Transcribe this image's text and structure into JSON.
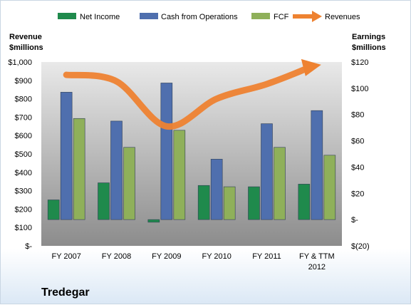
{
  "company": "Tredegar",
  "colors": {
    "net_income": "#1f8a4c",
    "cash_from_operations": "#4f6fae",
    "fcf": "#8fb05a",
    "revenues": "#ee8231"
  },
  "chart_data": {
    "type": "bar",
    "categories": [
      "FY 2007",
      "FY 2008",
      "FY 2009",
      "FY 2010",
      "FY 2011",
      "FY & TTM 2012"
    ],
    "series": [
      {
        "name": "Net Income",
        "type": "bar",
        "axis": "right",
        "values": [
          15,
          28,
          -2,
          26,
          25,
          27
        ]
      },
      {
        "name": "Cash from Operations",
        "type": "bar",
        "axis": "right",
        "values": [
          97,
          75,
          104,
          46,
          73,
          83
        ]
      },
      {
        "name": "FCF",
        "type": "bar",
        "axis": "right",
        "values": [
          77,
          55,
          68,
          25,
          55,
          49
        ]
      },
      {
        "name": "Revenues",
        "type": "line",
        "axis": "left",
        "values": [
          930,
          895,
          650,
          800,
          880,
          985
        ]
      }
    ],
    "ylabel_left": [
      "Revenue",
      "$millions"
    ],
    "ylabel_right": [
      "Earnings",
      "$millions"
    ],
    "ylim_left": [
      0,
      1000
    ],
    "ylim_right": [
      -20,
      120
    ],
    "left_ticks": [
      "$-",
      "$100",
      "$200",
      "$300",
      "$400",
      "$500",
      "$600",
      "$700",
      "$800",
      "$900",
      "$1,000"
    ],
    "right_ticks": [
      "$(20)",
      "$-",
      "$20",
      "$40",
      "$60",
      "$80",
      "$100",
      "$120"
    ],
    "legend_position": "top",
    "grid": false
  }
}
